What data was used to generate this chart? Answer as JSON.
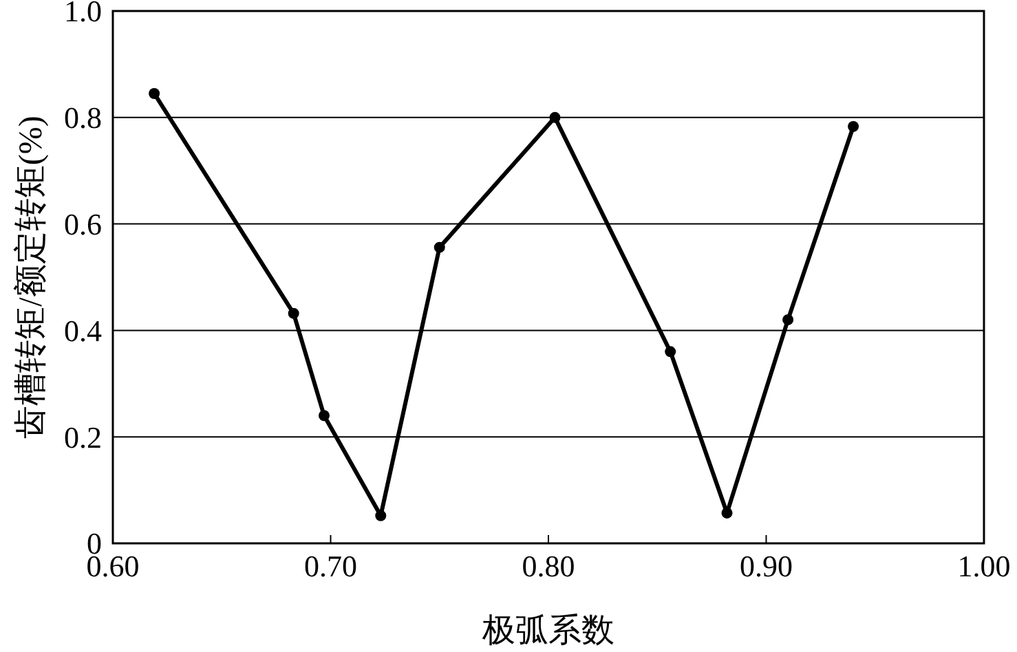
{
  "chart_data": {
    "type": "line",
    "xlabel": "极弧系数",
    "ylabel": "齿槽转矩/额定转矩(%)",
    "x": [
      0.619,
      0.683,
      0.697,
      0.723,
      0.75,
      0.803,
      0.856,
      0.882,
      0.91,
      0.94
    ],
    "series": [
      {
        "color": "#000000",
        "values": [
          0.845,
          0.432,
          0.24,
          0.052,
          0.556,
          0.8,
          0.36,
          0.057,
          0.42,
          0.783
        ]
      }
    ],
    "xlim": [
      0.6,
      1.0
    ],
    "xticks": [
      {
        "value": 0.6,
        "label": "0.60"
      },
      {
        "value": 0.7,
        "label": "0.70"
      },
      {
        "value": 0.8,
        "label": "0.80"
      },
      {
        "value": 0.9,
        "label": "0.90"
      },
      {
        "value": 1.0,
        "label": "1.00"
      }
    ],
    "ylim": [
      0,
      1
    ],
    "yticks": [
      0,
      {
        "value": 0.2,
        "label": "0.2"
      },
      {
        "value": 0.4,
        "label": "0.4"
      },
      {
        "value": 0.6,
        "label": "0.6"
      },
      {
        "value": 0.8,
        "label": "0.8"
      },
      {
        "value": 1,
        "label": "1.0"
      }
    ],
    "grid": "y",
    "marker": "circle",
    "line_style": "solid"
  }
}
